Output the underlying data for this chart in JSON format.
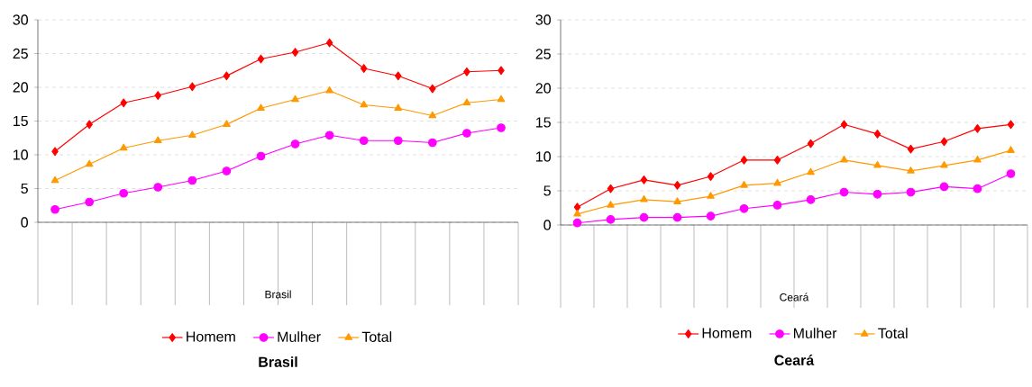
{
  "chart_data": [
    {
      "type": "line",
      "title": "Brasil",
      "xlabel": "Brasil",
      "categories": [
        null,
        null,
        null,
        null,
        null,
        null,
        null,
        null,
        null,
        null,
        null,
        null,
        null,
        null
      ],
      "ylim": [
        0,
        30
      ],
      "yticks": [
        0,
        5,
        10,
        15,
        20,
        25,
        30
      ],
      "grid": "y",
      "legend": "bottom",
      "tick_labels": "y",
      "line_style": "solid",
      "series": [
        {
          "name": "Homem",
          "color": "#ff0000",
          "marker": "diamond",
          "values": [
            10.5,
            14.5,
            17.7,
            18.8,
            20.1,
            21.7,
            24.2,
            25.2,
            26.6,
            22.8,
            21.7,
            19.8,
            22.3,
            22.5
          ]
        },
        {
          "name": "Mulher",
          "color": "#ff00ff",
          "marker": "circle",
          "values": [
            1.9,
            3.0,
            4.3,
            5.2,
            6.2,
            7.6,
            9.8,
            11.6,
            12.9,
            12.1,
            12.1,
            11.8,
            13.2,
            14.0
          ]
        },
        {
          "name": "Total",
          "color": "#ff9900",
          "marker": "triangle",
          "values": [
            6.2,
            8.6,
            11.0,
            12.1,
            12.9,
            14.5,
            16.9,
            18.2,
            19.5,
            17.4,
            16.9,
            15.8,
            17.7,
            18.2
          ]
        }
      ]
    },
    {
      "type": "line",
      "title": "Ceará",
      "xlabel": "Ceará",
      "categories": [
        null,
        null,
        null,
        null,
        null,
        null,
        null,
        null,
        null,
        null,
        null,
        null,
        null,
        null
      ],
      "ylim": [
        0,
        30
      ],
      "yticks": [
        0,
        5,
        10,
        15,
        20,
        25,
        30
      ],
      "grid": "y",
      "legend": "bottom",
      "tick_labels": "y",
      "line_style": "solid",
      "series": [
        {
          "name": "Homem",
          "color": "#ff0000",
          "marker": "diamond",
          "values": [
            2.6,
            5.3,
            6.6,
            5.8,
            7.1,
            9.5,
            9.5,
            11.9,
            14.7,
            13.3,
            11.1,
            12.2,
            14.1,
            14.7
          ]
        },
        {
          "name": "Mulher",
          "color": "#ff00ff",
          "marker": "circle",
          "values": [
            0.3,
            0.8,
            1.1,
            1.1,
            1.3,
            2.4,
            2.9,
            3.7,
            4.8,
            4.5,
            4.8,
            5.6,
            5.3,
            7.5
          ]
        },
        {
          "name": "Total",
          "color": "#ff9900",
          "marker": "triangle",
          "values": [
            1.6,
            2.9,
            3.7,
            3.4,
            4.2,
            5.8,
            6.1,
            7.7,
            9.5,
            8.7,
            7.9,
            8.7,
            9.5,
            10.9
          ]
        }
      ]
    }
  ]
}
